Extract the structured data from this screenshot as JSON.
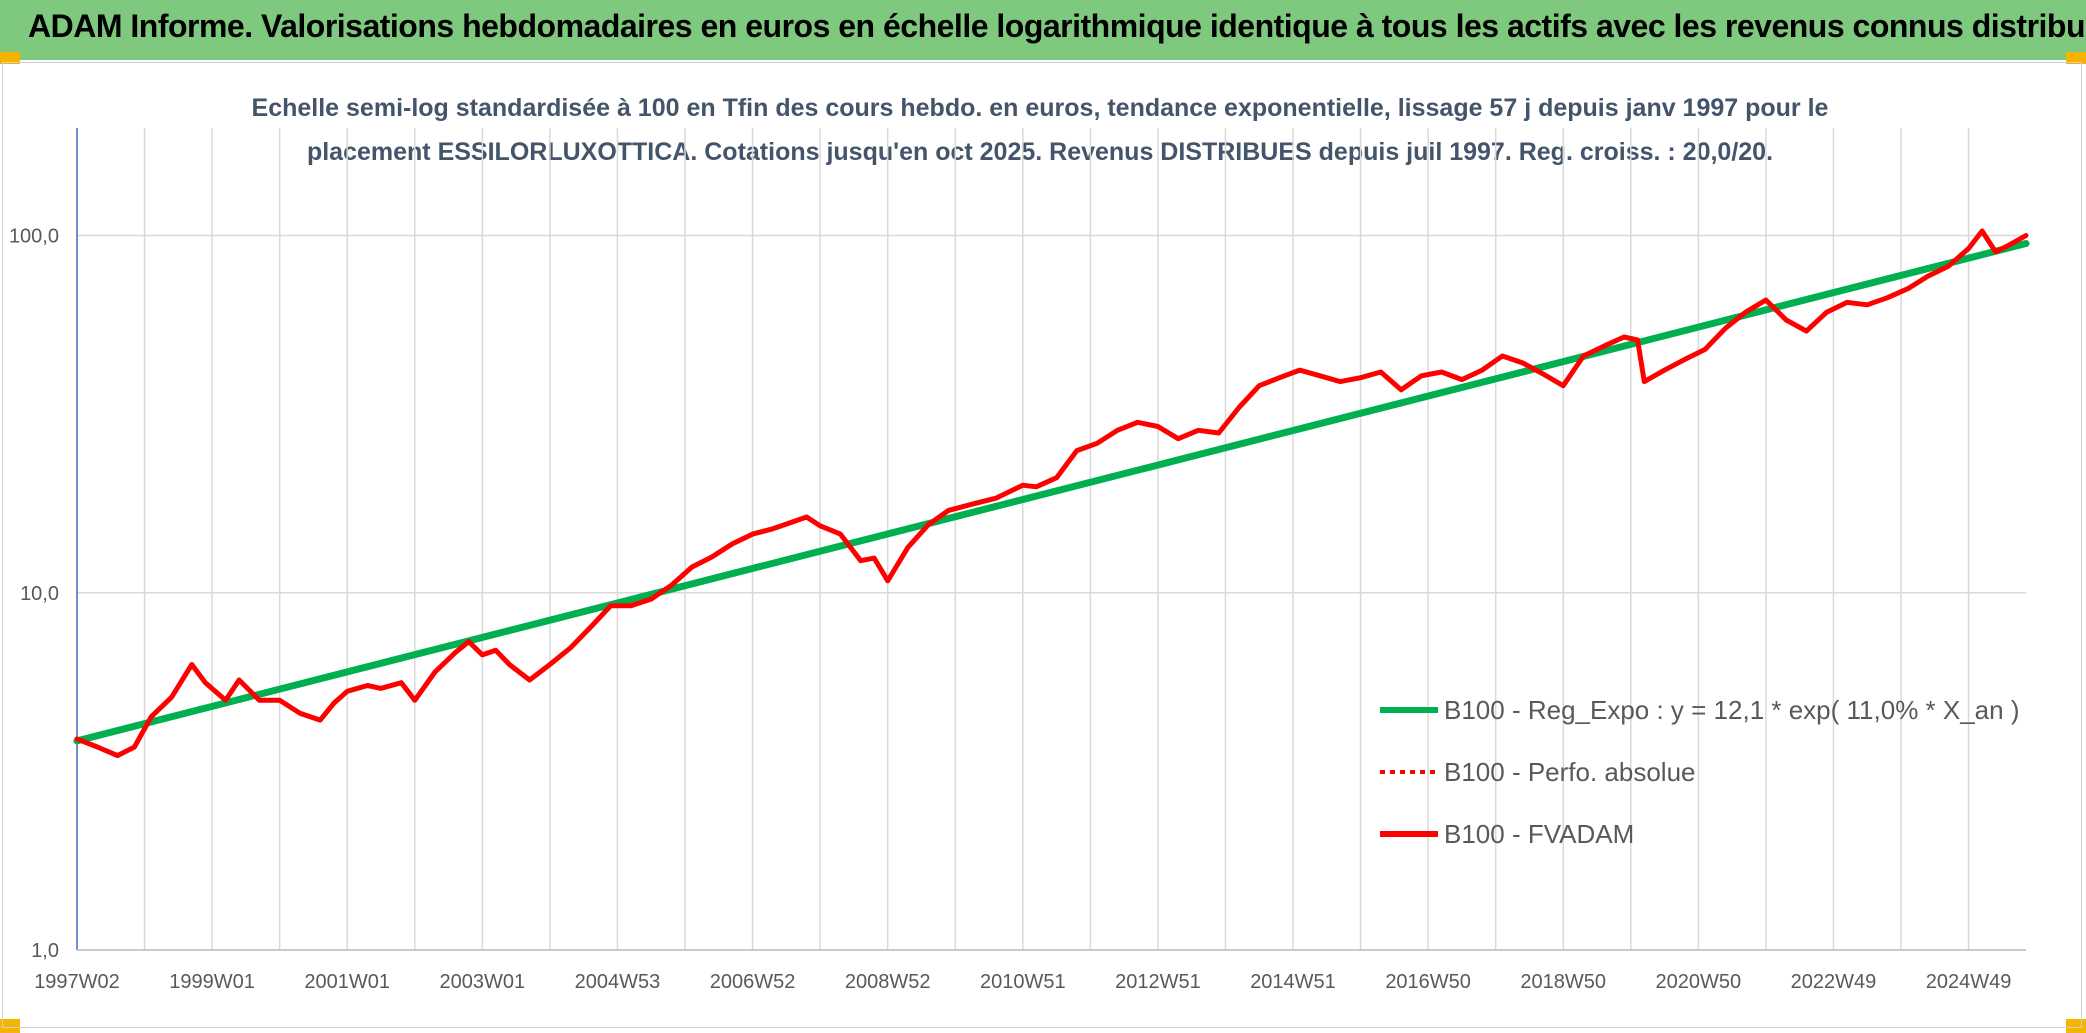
{
  "banner": {
    "title": "ADAM Informe. Valorisations hebdomadaires en euros en échelle logarithmique identique à tous les actifs avec les revenus connus distribués"
  },
  "colors": {
    "banner": "#7fc97f",
    "regression": "#00b050",
    "fvadam": "#ff0000",
    "perfo": "#ff0000",
    "title": "#44546a",
    "axis_text": "#595959",
    "grid": "#d9d9d9"
  },
  "chart_data": {
    "type": "line",
    "title": "Echelle semi-log standardisée à 100 en Tfin des cours hebdo. en euros, tendance exponentielle, lissage 57 j depuis janv 1997 pour le placement ESSILORLUXOTTICA. Cotations jusqu'en oct 2025. Revenus DISTRIBUES depuis juil 1997. Reg. croiss. : 20,0/20.",
    "y_scale": "log",
    "ylim": [
      1,
      200
    ],
    "xlim": [
      1997.0,
      2025.85
    ],
    "y_ticks": [
      {
        "value": 1,
        "label": "1,0"
      },
      {
        "value": 10,
        "label": "10,0"
      },
      {
        "value": 100,
        "label": "100,0"
      }
    ],
    "x_ticks": [
      {
        "value": 1997.0,
        "label": "1997W02"
      },
      {
        "value": 1999.0,
        "label": "1999W01"
      },
      {
        "value": 2001.0,
        "label": "2001W01"
      },
      {
        "value": 2003.0,
        "label": "2003W01"
      },
      {
        "value": 2005.0,
        "label": "2004W53"
      },
      {
        "value": 2007.0,
        "label": "2006W52"
      },
      {
        "value": 2009.0,
        "label": "2008W52"
      },
      {
        "value": 2011.0,
        "label": "2010W51"
      },
      {
        "value": 2013.0,
        "label": "2012W51"
      },
      {
        "value": 2015.0,
        "label": "2014W51"
      },
      {
        "value": 2017.0,
        "label": "2016W50"
      },
      {
        "value": 2019.0,
        "label": "2018W50"
      },
      {
        "value": 2021.0,
        "label": "2020W50"
      },
      {
        "value": 2023.0,
        "label": "2022W49"
      },
      {
        "value": 2025.0,
        "label": "2024W49"
      }
    ],
    "legend_position": "center-right",
    "grid": {
      "vertical": true,
      "horizontal": true
    },
    "series": [
      {
        "name": "B100 - Reg_Expo : y = 12,1 * exp( 11,0% * X_an )",
        "style": "solid",
        "x": [
          1997.0,
          2025.85
        ],
        "y": [
          3.85,
          95.0
        ]
      },
      {
        "name": "B100 - Perfo. absolue",
        "style": "dotted",
        "x": [],
        "y": []
      },
      {
        "name": "B100 - FVADAM",
        "style": "solid",
        "x": [
          1997.0,
          1997.3,
          1997.6,
          1997.85,
          1998.1,
          1998.4,
          1998.7,
          1998.9,
          1999.2,
          1999.4,
          1999.7,
          2000.0,
          2000.3,
          2000.6,
          2000.8,
          2001.0,
          2001.3,
          2001.5,
          2001.8,
          2002.0,
          2002.3,
          2002.6,
          2002.8,
          2003.0,
          2003.2,
          2003.4,
          2003.7,
          2004.0,
          2004.3,
          2004.6,
          2004.9,
          2005.2,
          2005.5,
          2005.8,
          2006.1,
          2006.4,
          2006.7,
          2007.0,
          2007.3,
          2007.6,
          2007.8,
          2008.0,
          2008.3,
          2008.6,
          2008.8,
          2009.0,
          2009.3,
          2009.6,
          2009.9,
          2010.3,
          2010.6,
          2011.0,
          2011.2,
          2011.5,
          2011.8,
          2012.1,
          2012.4,
          2012.7,
          2013.0,
          2013.3,
          2013.6,
          2013.9,
          2014.2,
          2014.5,
          2014.8,
          2015.1,
          2015.4,
          2015.7,
          2016.0,
          2016.3,
          2016.6,
          2016.9,
          2017.2,
          2017.5,
          2017.8,
          2018.1,
          2018.4,
          2018.7,
          2019.0,
          2019.3,
          2019.6,
          2019.9,
          2020.1,
          2020.2,
          2020.5,
          2020.8,
          2021.1,
          2021.4,
          2021.7,
          2022.0,
          2022.3,
          2022.6,
          2022.9,
          2023.2,
          2023.5,
          2023.8,
          2024.1,
          2024.4,
          2024.7,
          2025.0,
          2025.2,
          2025.4,
          2025.6,
          2025.85
        ],
        "y": [
          3.9,
          3.7,
          3.5,
          3.7,
          4.5,
          5.1,
          6.3,
          5.6,
          5.0,
          5.7,
          5.0,
          5.0,
          4.6,
          4.4,
          4.9,
          5.3,
          5.5,
          5.4,
          5.6,
          5.0,
          6.0,
          6.8,
          7.3,
          6.7,
          6.9,
          6.3,
          5.7,
          6.3,
          7.0,
          8.0,
          9.2,
          9.2,
          9.6,
          10.5,
          11.8,
          12.6,
          13.7,
          14.6,
          15.1,
          15.8,
          16.3,
          15.4,
          14.6,
          12.3,
          12.5,
          10.8,
          13.4,
          15.5,
          17.0,
          17.8,
          18.4,
          20.0,
          19.8,
          21.0,
          25.0,
          26.2,
          28.5,
          30.0,
          29.2,
          27.0,
          28.5,
          28.0,
          33.0,
          38.0,
          40.0,
          42.0,
          40.5,
          39.0,
          40.0,
          41.5,
          37.0,
          40.5,
          41.5,
          39.5,
          42.0,
          46.0,
          44.0,
          41.0,
          38.0,
          46.0,
          49.0,
          52.0,
          51.0,
          39.0,
          42.0,
          45.0,
          48.0,
          55.0,
          61.0,
          66.0,
          58.0,
          54.0,
          61.0,
          65.0,
          64.0,
          67.0,
          71.0,
          77.0,
          82.0,
          92.0,
          103.0,
          90.0,
          94.0,
          100.0
        ]
      }
    ]
  }
}
